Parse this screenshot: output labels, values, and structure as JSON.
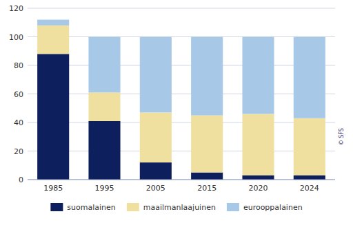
{
  "chart_data": {
    "type": "bar",
    "stacked": true,
    "categories": [
      "1985",
      "1995",
      "2005",
      "2015",
      "2020",
      "2024"
    ],
    "series": [
      {
        "name": "suomalainen",
        "color": "#0d1f5c",
        "values": [
          88,
          41,
          12,
          5,
          3,
          3
        ]
      },
      {
        "name": "maailmanlaajuinen",
        "color": "#f0e0a0",
        "values": [
          20,
          20,
          35,
          40,
          43,
          40
        ]
      },
      {
        "name": "eurooppalainen",
        "color": "#a8c8e8",
        "values": [
          4,
          39,
          53,
          55,
          54,
          57
        ]
      }
    ],
    "ylim": [
      0,
      120
    ],
    "yticks": [
      0,
      20,
      40,
      60,
      80,
      100,
      120
    ],
    "grid": true,
    "legend": "bottom",
    "annotations": [
      "© SFS"
    ]
  }
}
